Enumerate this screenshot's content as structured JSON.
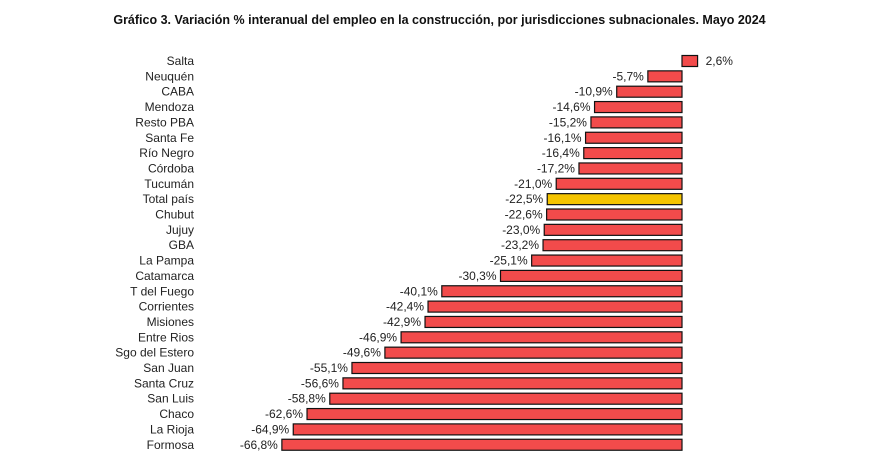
{
  "chart_data": {
    "type": "bar",
    "orientation": "horizontal",
    "title": "Gráfico 3. Variación % interanual del empleo en la construcción, por jurisdicciones subnacionales. Mayo 2024",
    "xlabel": "",
    "ylabel": "",
    "xlim": [
      -70,
      5
    ],
    "grid": false,
    "legend": "none",
    "bar_color": "#F24B4B",
    "highlight_color": "#F5C400",
    "highlight_category": "Total país",
    "outline_color": "#111111",
    "categories": [
      "Salta",
      "Neuquén",
      "CABA",
      "Mendoza",
      "Resto PBA",
      "Santa Fe",
      "Río Negro",
      "Córdoba",
      "Tucumán",
      "Total país",
      "Chubut",
      "Jujuy",
      "GBA",
      "La Pampa",
      "Catamarca",
      "T del Fuego",
      "Corrientes",
      "Misiones",
      "Entre Rios",
      "Sgo del Estero",
      "San Juan",
      "Santa Cruz",
      "San Luis",
      "Chaco",
      "La Rioja",
      "Formosa"
    ],
    "values": [
      2.6,
      -5.7,
      -10.9,
      -14.6,
      -15.2,
      -16.1,
      -16.4,
      -17.2,
      -21.0,
      -22.5,
      -22.6,
      -23.0,
      -23.2,
      -25.1,
      -30.3,
      -40.1,
      -42.4,
      -42.9,
      -46.9,
      -49.6,
      -55.1,
      -56.6,
      -58.8,
      -62.6,
      -64.9,
      -66.8
    ],
    "value_labels": [
      "2,6%",
      "-5,7%",
      "-10,9%",
      "-14,6%",
      "-15,2%",
      "-16,1%",
      "-16,4%",
      "-17,2%",
      "-21,0%",
      "-22,5%",
      "-22,6%",
      "-23,0%",
      "-23,2%",
      "-25,1%",
      "-30,3%",
      "-40,1%",
      "-42,4%",
      "-42,9%",
      "-46,9%",
      "-49,6%",
      "-55,1%",
      "-56,6%",
      "-58,8%",
      "-62,6%",
      "-64,9%",
      "-66,8%"
    ]
  }
}
